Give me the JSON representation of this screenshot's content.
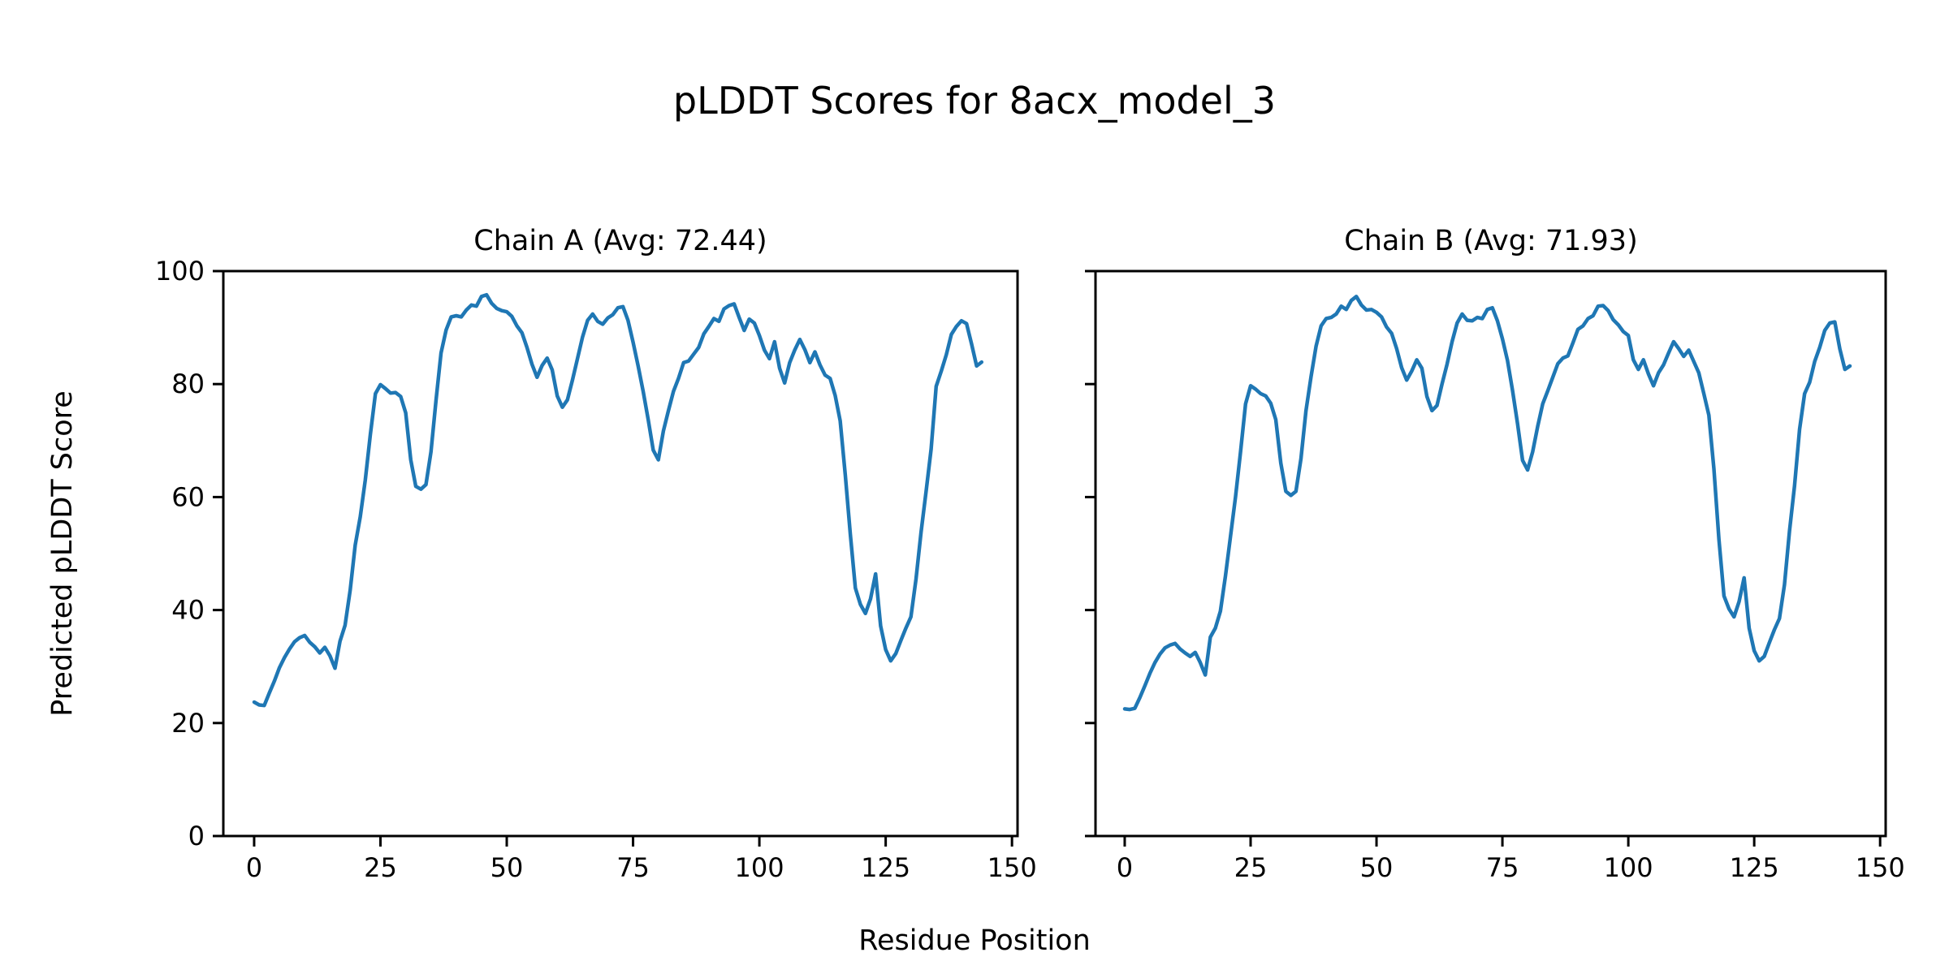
{
  "figure": {
    "title": "pLDDT Scores for 8acx_model_3",
    "xlabel": "Residue Position",
    "ylabel": "Predicted pLDDT Score",
    "line_color": "#1f77b4",
    "spine_color": "#000000",
    "text_color": "#000000",
    "background_color": "#ffffff"
  },
  "chart_data": [
    {
      "type": "line",
      "title": "Chain A (Avg: 72.44)",
      "series_name": "Chain A pLDDT",
      "avg": 72.44,
      "x_start": 0,
      "xticks": [
        0,
        25,
        50,
        75,
        100,
        125,
        150
      ],
      "yticks": [
        0,
        20,
        40,
        60,
        80,
        100
      ],
      "xlim": [
        -6.1,
        151.1
      ],
      "ylim": [
        0,
        100
      ],
      "grid": false,
      "show_ytick_labels": true,
      "values": [
        23.7,
        23.2,
        23.1,
        25.3,
        27.4,
        29.8,
        31.6,
        33.1,
        34.4,
        35.1,
        35.5,
        34.3,
        33.5,
        32.4,
        33.4,
        31.9,
        29.7,
        34.5,
        37.3,
        43.5,
        51.5,
        56.5,
        63.0,
        71.0,
        78.3,
        79.9,
        79.2,
        78.4,
        78.5,
        77.8,
        74.9,
        66.6,
        61.9,
        61.4,
        62.2,
        68.0,
        77.1,
        85.5,
        89.6,
        91.9,
        92.1,
        91.9,
        93.1,
        94.0,
        93.8,
        95.5,
        95.8,
        94.3,
        93.4,
        93.0,
        92.8,
        92.0,
        90.3,
        89.1,
        86.5,
        83.5,
        81.2,
        83.3,
        84.6,
        82.5,
        77.9,
        75.9,
        77.2,
        80.7,
        84.5,
        88.3,
        91.3,
        92.4,
        91.1,
        90.6,
        91.7,
        92.3,
        93.5,
        93.7,
        91.3,
        87.4,
        83.2,
        78.7,
        73.7,
        68.3,
        66.6,
        71.7,
        75.3,
        78.7,
        81.0,
        83.8,
        84.1,
        85.3,
        86.5,
        88.9,
        90.2,
        91.6,
        91.1,
        93.3,
        93.9,
        94.2,
        91.8,
        89.5,
        91.5,
        90.8,
        88.6,
        86.0,
        84.5,
        87.5,
        82.8,
        80.2,
        83.8,
        86.0,
        87.9,
        86.1,
        83.8,
        85.7,
        83.4,
        81.6,
        81.0,
        78.0,
        73.5,
        63.9,
        53.4,
        43.9,
        41.0,
        39.4,
        42.0,
        46.4,
        37.2,
        33.0,
        31.0,
        32.3,
        34.6,
        36.8,
        38.8,
        45.5,
        53.8,
        61.0,
        68.5,
        79.6,
        82.3,
        85.2,
        88.8,
        90.2,
        91.2,
        90.7,
        87.1,
        83.2,
        83.9
      ]
    },
    {
      "type": "line",
      "title": "Chain B (Avg: 71.93)",
      "series_name": "Chain B pLDDT",
      "avg": 71.93,
      "x_start": 0,
      "xticks": [
        0,
        25,
        50,
        75,
        100,
        125,
        150
      ],
      "yticks": [
        0,
        20,
        40,
        60,
        80,
        100
      ],
      "xlim": [
        -5.8,
        151.1
      ],
      "ylim": [
        0,
        100
      ],
      "grid": false,
      "show_ytick_labels": false,
      "values": [
        22.5,
        22.4,
        22.6,
        24.5,
        26.6,
        28.8,
        30.7,
        32.2,
        33.3,
        33.8,
        34.1,
        33.1,
        32.4,
        31.8,
        32.5,
        30.7,
        28.5,
        35.2,
        36.8,
        39.8,
        46.0,
        53.0,
        60.0,
        68.0,
        76.5,
        79.7,
        79.1,
        78.3,
        77.9,
        76.6,
        73.7,
        66.0,
        61.0,
        60.3,
        61.0,
        66.8,
        75.3,
        81.3,
        86.7,
        90.3,
        91.6,
        91.8,
        92.4,
        93.8,
        93.2,
        94.8,
        95.5,
        94.0,
        93.1,
        93.2,
        92.7,
        91.9,
        90.1,
        89.0,
        86.3,
        82.9,
        80.7,
        82.3,
        84.3,
        82.8,
        77.8,
        75.3,
        76.2,
        80.0,
        83.5,
        87.5,
        90.8,
        92.4,
        91.3,
        91.2,
        91.8,
        91.6,
        93.2,
        93.5,
        91.2,
        88.0,
        84.2,
        78.9,
        73.0,
        66.5,
        64.8,
        68.0,
        72.5,
        76.5,
        78.8,
        81.2,
        83.6,
        84.6,
        85.0,
        87.3,
        89.7,
        90.3,
        91.6,
        92.1,
        93.8,
        93.9,
        93.0,
        91.4,
        90.5,
        89.3,
        88.6,
        84.3,
        82.6,
        84.3,
        81.8,
        79.7,
        82.0,
        83.4,
        85.5,
        87.5,
        86.3,
        84.9,
        86.0,
        84.0,
        82.0,
        78.3,
        74.5,
        65.0,
        52.5,
        42.5,
        40.2,
        38.8,
        41.5,
        45.7,
        36.8,
        32.8,
        31.0,
        31.8,
        34.2,
        36.5,
        38.5,
        44.5,
        54.0,
        62.0,
        72.0,
        78.3,
        80.3,
        84.0,
        86.5,
        89.5,
        90.8,
        91.0,
        86.2,
        82.6,
        83.2
      ]
    }
  ]
}
